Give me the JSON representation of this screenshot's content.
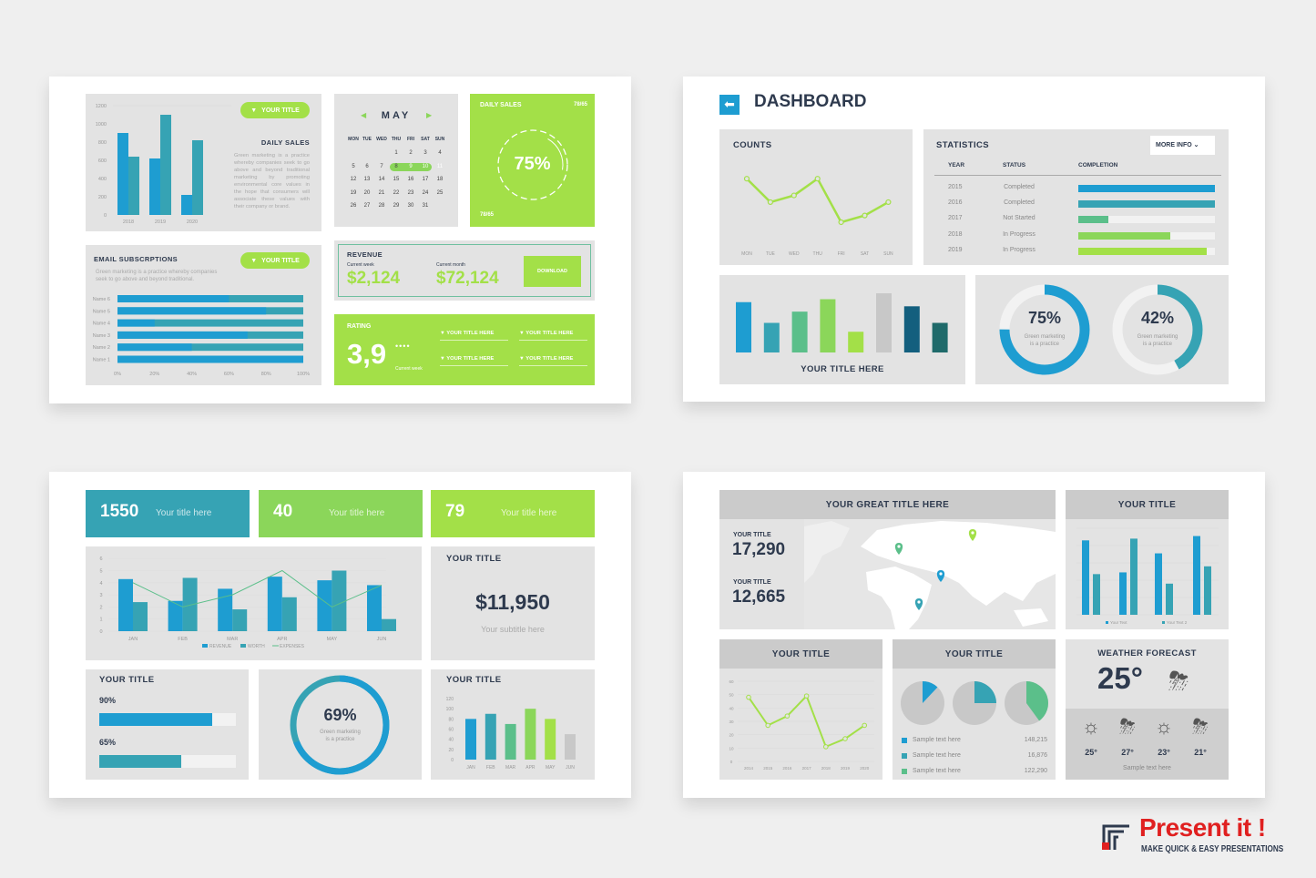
{
  "colors": {
    "blue": "#1e9dd1",
    "teal": "#36a3b4",
    "green_teal": "#5bbf8a",
    "green": "#8bd65a",
    "lime": "#a3e048",
    "gray": "#c8c8c8",
    "dark_blue": "#135f7e",
    "dark_teal": "#1f6a6a",
    "navy": "#2e3a4e",
    "brand_red": "#e02020"
  },
  "slide1": {
    "daily_sales": {
      "pill": "YOUR TITLE",
      "title": "DAILY SALES",
      "text": "Green marketing is a practice whereby companies seek to go above and beyond traditional marketing by promoting environmental core values in the hope that consumers will associate these values with their company or brand."
    },
    "calendar": {
      "month": "MAY",
      "prev_icon": "triangle-left-icon",
      "next_icon": "triangle-right-icon",
      "days": [
        "MON",
        "TUE",
        "WED",
        "THU",
        "FRI",
        "SAT",
        "SUN"
      ],
      "first_weekday": 3,
      "num_days": 31,
      "highlighted": [
        9,
        10,
        11
      ]
    },
    "daily_sales_card": {
      "title": "DAILY SALES",
      "ratio_top": "78/65",
      "percent": "75%",
      "percent_value": 75,
      "ratio_bottom": "78/65"
    },
    "email": {
      "title": "EMAIL SUBSCRPTIONS",
      "pill": "YOUR TITLE",
      "text_line1": "Green marketing is a practice whereby companies",
      "text_line2": "seek to go above and beyond traditional."
    },
    "revenue": {
      "title": "REVENUE",
      "week_label": "Current week",
      "week_value": "$2,124",
      "month_label": "Current month",
      "month_value": "$72,124",
      "download": "DOWNLOAD"
    },
    "rating": {
      "title": "RATING",
      "value": "3,9",
      "caption": "Current week",
      "items": [
        "YOUR TITLE HERE",
        "YOUR TITLE HERE",
        "YOUR TITLE HERE",
        "YOUR TITLE HERE"
      ]
    }
  },
  "slide2": {
    "title": "DASHBOARD",
    "back_icon": "arrow-left-icon",
    "counts": {
      "title": "COUNTS"
    },
    "statistics": {
      "title": "STATISTICS",
      "more_info": "MORE INFO",
      "headers": [
        "YEAR",
        "STATUS",
        "COMPLETION"
      ],
      "rows": [
        {
          "year": "2015",
          "status": "Completed",
          "completion": 100,
          "color": "#1e9dd1"
        },
        {
          "year": "2016",
          "status": "Completed",
          "completion": 100,
          "color": "#36a3b4"
        },
        {
          "year": "2017",
          "status": "Not Started",
          "completion": 22,
          "color": "#5bbf8a"
        },
        {
          "year": "2018",
          "status": "In Progress",
          "completion": 67,
          "color": "#8bd65a"
        },
        {
          "year": "2019",
          "status": "In Progress",
          "completion": 94,
          "color": "#a3e048"
        }
      ]
    },
    "bars": {
      "title": "YOUR TITLE HERE"
    },
    "donuts": [
      {
        "percent": "75%",
        "value": 75,
        "line1": "Green marketing",
        "line2": "is a practice",
        "color": "#1e9dd1"
      },
      {
        "percent": "42%",
        "value": 42,
        "line1": "Green marketing",
        "line2": "is a practice",
        "color": "#36a3b4"
      }
    ]
  },
  "slide3": {
    "kpis": [
      {
        "value": "1550",
        "label": "Your title here",
        "color": "#36a3b4"
      },
      {
        "value": "40",
        "label": "Your title here",
        "color": "#8bd65a"
      },
      {
        "value": "79",
        "label": "Your title here",
        "color": "#a3e048"
      }
    ],
    "money": {
      "title": "YOUR TITLE",
      "value": "$11,950",
      "subtitle": "Your subtitle here"
    },
    "progress": {
      "title": "YOUR TITLE",
      "items": [
        {
          "label": "90%",
          "value": 90,
          "color": "#1e9dd1"
        },
        {
          "label": "65%",
          "value": 65,
          "color": "#36a3b4"
        }
      ]
    },
    "donut": {
      "percent": "69%",
      "value": 69,
      "line1": "Green marketing",
      "line2": "is a practice"
    },
    "bar_title": "YOUR TITLE"
  },
  "slide4": {
    "map": {
      "title": "YOUR GREAT TITLE HERE",
      "stats": [
        {
          "label": "YOUR TITLE",
          "value": "17,290"
        },
        {
          "label": "YOUR TITLE",
          "value": "12,665"
        }
      ],
      "pins": [
        {
          "color": "#5bbf8a"
        },
        {
          "color": "#a3e048"
        },
        {
          "color": "#1e9dd1"
        },
        {
          "color": "#36a3b4"
        }
      ]
    },
    "bar_title": "YOUR TITLE",
    "line_title": "YOUR TITLE",
    "pies": {
      "title": "YOUR TITLE",
      "items": [
        {
          "label": "Sample text here",
          "value": "148,215",
          "share": 12,
          "color": "#1e9dd1"
        },
        {
          "label": "Sample text here",
          "value": "16,876",
          "share": 25,
          "color": "#36a3b4"
        },
        {
          "label": "Sample text here",
          "value": "122,290",
          "share": 40,
          "color": "#5bbf8a"
        }
      ]
    },
    "weather": {
      "title": "WEATHER FORECAST",
      "current": "25°",
      "current_icon": "thunderstorm-icon",
      "forecast": [
        {
          "temp": "25°",
          "icon": "sun-sunglasses-icon"
        },
        {
          "temp": "27°",
          "icon": "thunderstorm-icon"
        },
        {
          "temp": "23°",
          "icon": "sun-sunglasses-icon"
        },
        {
          "temp": "21°",
          "icon": "thunderstorm-icon"
        }
      ],
      "caption": "Sample text here"
    }
  },
  "logo": {
    "name": "Present it !",
    "tagline": "MAKE QUICK & EASY PRESENTATIONS"
  },
  "chart_data": [
    {
      "id": "daily_sales",
      "type": "bar",
      "categories": [
        "2018",
        "2019",
        "2020"
      ],
      "series": [
        {
          "values": [
            900,
            620,
            220
          ],
          "color": "#1e9dd1"
        },
        {
          "values": [
            640,
            1100,
            820
          ],
          "color": "#36a3b4"
        }
      ],
      "ylim": [
        0,
        1200
      ],
      "yticks": [
        0,
        200,
        400,
        600,
        800,
        1000,
        1200
      ]
    },
    {
      "id": "email",
      "type": "bar",
      "orientation": "horizontal",
      "categories": [
        "Name 6",
        "Name 5",
        "Name 4",
        "Name 3",
        "Name 2",
        "Name 1"
      ],
      "values": [
        60,
        80,
        20,
        70,
        40,
        100
      ],
      "xticks": [
        "0%",
        "20%",
        "40%",
        "60%",
        "80%",
        "100%"
      ]
    },
    {
      "id": "counts",
      "type": "line",
      "categories": [
        "MON",
        "TUE",
        "WED",
        "THU",
        "FRI",
        "SAT",
        "SUN"
      ],
      "values": [
        80,
        45,
        55,
        80,
        15,
        25,
        45
      ],
      "ylim": [
        0,
        100
      ],
      "color": "#a3e048"
    },
    {
      "id": "dash_bars",
      "type": "bar",
      "values": [
        85,
        50,
        69,
        90,
        35,
        100,
        78,
        50
      ],
      "colors": [
        "#1e9dd1",
        "#36a3b4",
        "#5bbf8a",
        "#8bd65a",
        "#a3e048",
        "#c8c8c8",
        "#135f7e",
        "#1f6a6a"
      ],
      "ylim": [
        0,
        100
      ]
    },
    {
      "id": "monthly",
      "type": "bar",
      "categories": [
        "JAN",
        "FEB",
        "MAR",
        "APR",
        "MAY",
        "JUN"
      ],
      "series": [
        {
          "name": "REVENUE",
          "values": [
            4.3,
            2.5,
            3.5,
            4.5,
            4.2,
            3.8
          ],
          "color": "#1e9dd1"
        },
        {
          "name": "WORTH",
          "values": [
            2.4,
            4.4,
            1.8,
            2.8,
            5,
            1
          ],
          "color": "#36a3b4"
        },
        {
          "name": "EXPENSES",
          "type": "line",
          "values": [
            4,
            2,
            3,
            5,
            2,
            3.8
          ],
          "color": "#5bbf8a"
        }
      ],
      "ylim": [
        0,
        6
      ],
      "yticks": [
        0,
        1,
        2,
        3,
        4,
        5,
        6
      ],
      "legend": "bottom"
    },
    {
      "id": "monthly_single",
      "type": "bar",
      "categories": [
        "JAN",
        "FEB",
        "MAR",
        "APR",
        "MAY",
        "JUN"
      ],
      "values": [
        80,
        90,
        70,
        100,
        80,
        50
      ],
      "colors": [
        "#1e9dd1",
        "#36a3b4",
        "#5bbf8a",
        "#8bd65a",
        "#a3e048",
        "#c8c8c8"
      ],
      "ylim": [
        0,
        120
      ],
      "yticks": [
        0,
        20,
        40,
        60,
        80,
        100,
        120
      ]
    },
    {
      "id": "pairs",
      "type": "bar",
      "series": [
        {
          "name": "Your Text",
          "values": [
            86,
            49,
            71,
            91
          ],
          "color": "#1e9dd1"
        },
        {
          "name": "Your Text 2",
          "values": [
            47,
            88,
            36,
            56
          ],
          "color": "#36a3b4"
        }
      ],
      "ylim": [
        0,
        100
      ],
      "grid": true,
      "legend": "bottom"
    },
    {
      "id": "years",
      "type": "line",
      "categories": [
        "2014",
        "2015",
        "2016",
        "2017",
        "2018",
        "2019",
        "2020"
      ],
      "values": [
        48,
        27,
        34,
        49,
        11,
        17,
        27
      ],
      "ylim": [
        0,
        60
      ],
      "yticks": [
        0,
        10,
        20,
        30,
        40,
        50,
        60
      ],
      "grid": true,
      "color": "#a3e048"
    }
  ]
}
